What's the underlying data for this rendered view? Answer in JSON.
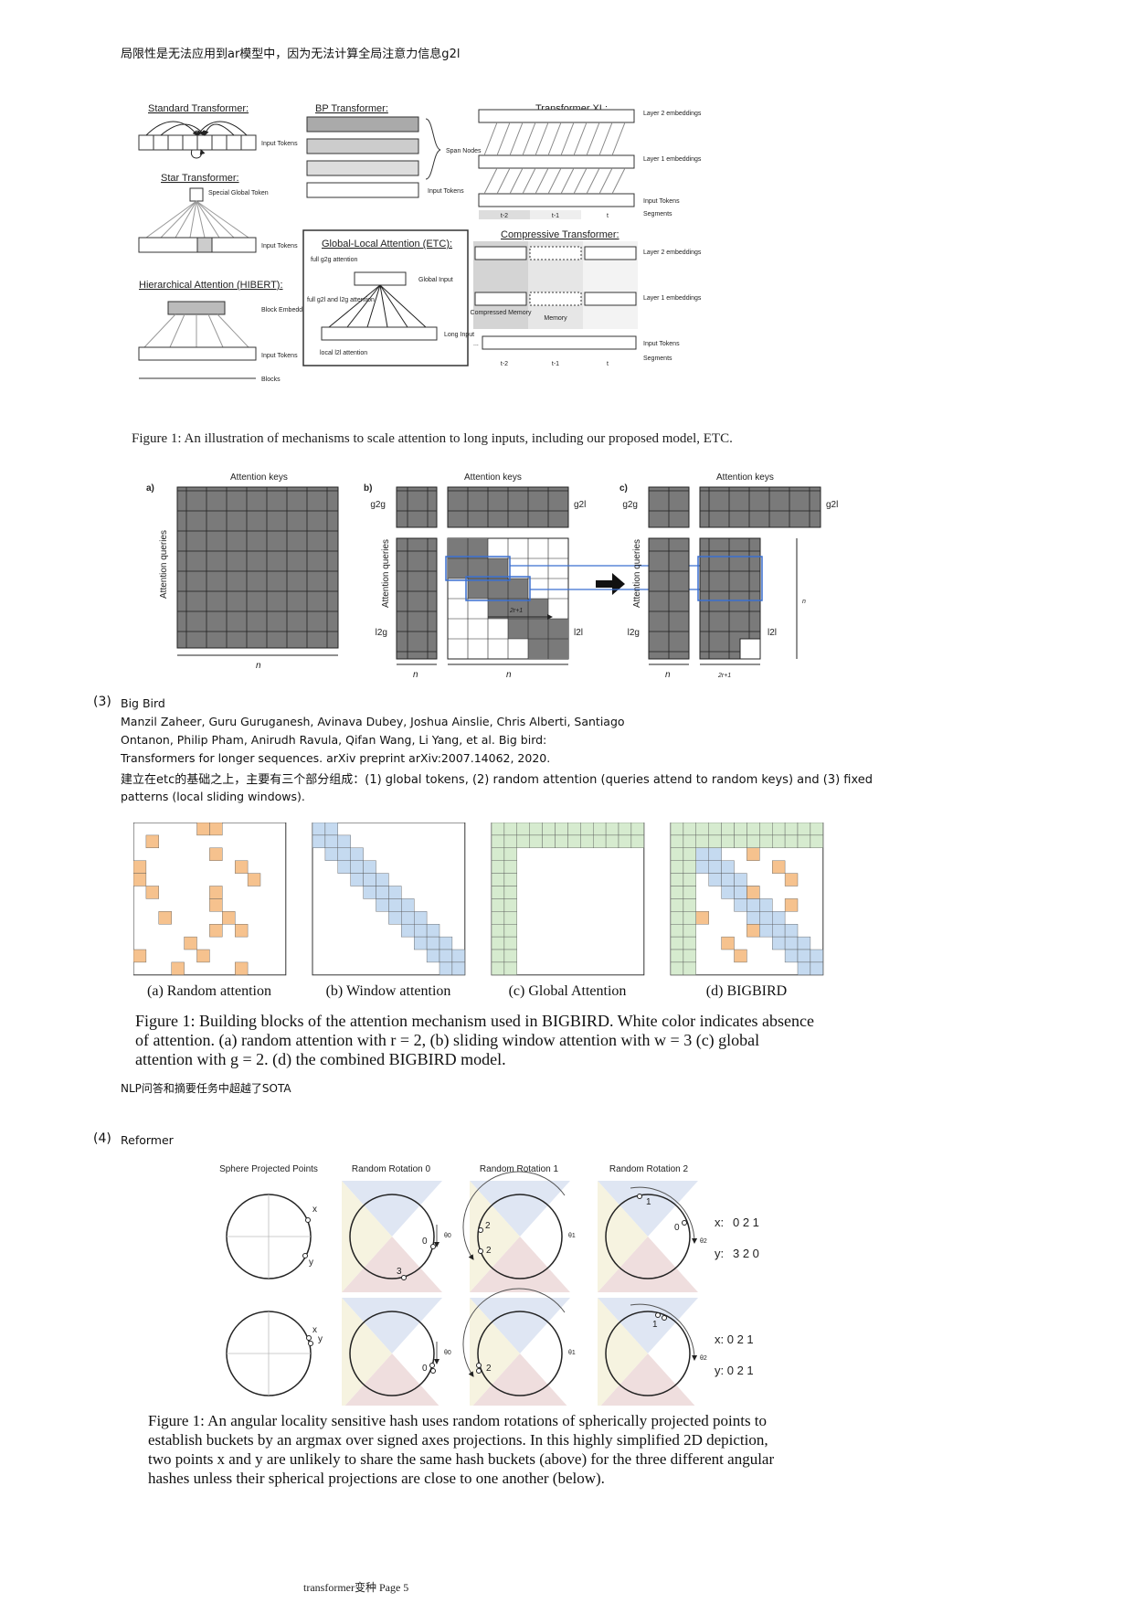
{
  "header_note": "局限性是无法应用到ar模型中，因为无法计算全局注意力信息g2l",
  "fig_etc": {
    "titles": {
      "standard": "Standard Transformer:",
      "bp": "BP Transformer:",
      "xl": "Transformer XL:",
      "star": "Star Transformer:",
      "etc_box": "Global-Local Attention (ETC):",
      "hibert": "Hierarchical Attention (HIBERT):",
      "compressive": "Compressive Transformer:"
    },
    "labels": {
      "input_tokens": "Input Tokens",
      "span_nodes": "Span Nodes",
      "special_global_token": "Special Global Token",
      "block_embeddings": "Block Embeddings",
      "blocks": "Blocks",
      "layer2": "Layer 2 embeddings",
      "layer1": "Layer 1 embeddings",
      "segments": "Segments",
      "global_input": "Global Input",
      "long_input": "Long Input",
      "full_g2g": "full g2g attention",
      "full_g2l": "full g2l and l2g attention",
      "local_l2l": "local l2l attention",
      "compressed_memory": "Compressed Memory",
      "memory": "Memory",
      "seg_t2": "t-2",
      "seg_t1": "t-1",
      "seg_t": "t",
      "dots": "..."
    },
    "caption": "Figure 1: An illustration of mechanisms to scale attention to long inputs, including our proposed model, ETC."
  },
  "fig_matrix": {
    "panel_a": "a)",
    "panel_b": "b)",
    "panel_c": "c)",
    "attention_keys": "Attention keys",
    "attention_queries": "Attention queries",
    "n": "n",
    "ng": "n",
    "ng_sub": "g",
    "nl": "n",
    "nl_sub": "l",
    "g2g": "g2g",
    "g2l": "g2l",
    "l2g": "l2g",
    "l2l": "l2l",
    "two_r_plus_1": "2r+1"
  },
  "section3": {
    "number": "(3)",
    "title": "Big Bird",
    "ref_line1": "Manzil Zaheer, Guru Guruganesh, Avinava Dubey, Joshua Ainslie, Chris Alberti, Santiago",
    "ref_line2": "Ontanon, Philip Pham, Anirudh Ravula, Qifan Wang, Li Yang, et al. Big bird:",
    "ref_line3": "Transformers for longer sequences. arXiv preprint arXiv:2007.14062, 2020.",
    "desc_line1": "建立在etc的基础之上，主要有三个部分组成：(1) global tokens, (2) random attention (queries attend to random keys) and (3) fixed",
    "desc_line2": "patterns (local sliding windows).",
    "subcaptions": [
      "(a) Random attention",
      "(b) Window attention",
      "(c) Global Attention",
      "(d) BIGBIRD"
    ],
    "caption_line1": "Figure 1: Building blocks of the attention mechanism used in BIGBIRD. White color indicates absence",
    "caption_line2": "of attention. (a) random attention with r = 2, (b) sliding window attention with w = 3 (c) global",
    "caption_line3": "attention with g = 2. (d) the combined BIGBIRD model.",
    "note": "NLP问答和摘要任务中超越了SOTA",
    "colors": {
      "random": "#f6c28e",
      "window": "#c5daf0",
      "global": "#d6ebcf",
      "grid": "#333333"
    }
  },
  "section4": {
    "number": "(4)",
    "title": "Reformer",
    "col_titles": [
      "Sphere Projected Points",
      "Random Rotation 0",
      "Random Rotation 1",
      "Random Rotation 2"
    ],
    "x_label": "x",
    "y_label": "y",
    "theta0": "θ0",
    "theta1": "θ1",
    "theta2": "θ2",
    "top_x_hash": "x: 0 2 1",
    "top_y_hash": "y: 3 2 0",
    "top_x_prefix": "x:",
    "top_x_digits": "0 2 1",
    "top_y_prefix": "y:",
    "top_y_digits": "3 2 0",
    "bottom_x_hash": "x: 0 2 1",
    "bottom_y_hash": "y: 0 2 1",
    "bucket_labels": {
      "r0_top_a": "0",
      "r0_top_b": "3",
      "r1_top_a": "2",
      "r1_top_b": "2",
      "r2_top_a": "1",
      "r2_top_b": "0",
      "r0_bot": "0",
      "r1_bot": "2",
      "r2_bot": "1"
    },
    "caption_line1": "Figure 1: An angular locality sensitive hash uses random rotations of spherically projected points to",
    "caption_line2": "establish buckets by an argmax over signed axes projections. In this highly simplified 2D depiction,",
    "caption_line3": "two points x and y are unlikely to share the same hash buckets (above) for the three different angular",
    "caption_line4": "hashes unless their spherical projections are close to one another (below)."
  },
  "footer": "transformer变种 Page 5"
}
